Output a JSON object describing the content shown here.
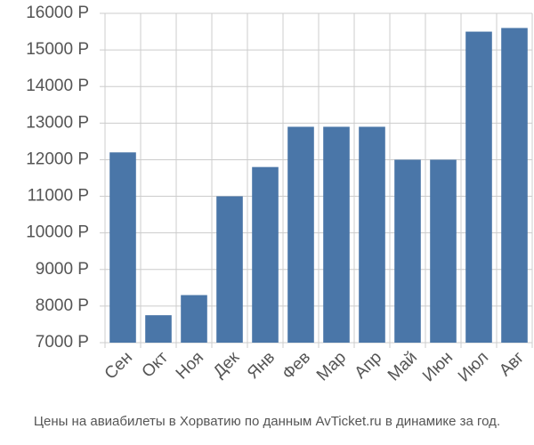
{
  "chart_data": {
    "type": "bar",
    "categories": [
      "Сен",
      "Окт",
      "Ноя",
      "Дек",
      "Янв",
      "Фев",
      "Мар",
      "Апр",
      "Май",
      "Июн",
      "Июл",
      "Авг"
    ],
    "values": [
      12200,
      7750,
      8300,
      11000,
      11800,
      12900,
      12900,
      12900,
      12000,
      12000,
      15500,
      15600
    ],
    "color": "#4a76a8",
    "ylim": [
      7000,
      16000
    ],
    "yticks": [
      {
        "value": 7000,
        "label": "7000 Р"
      },
      {
        "value": 8000,
        "label": "8000 Р"
      },
      {
        "value": 9000,
        "label": "9000 Р"
      },
      {
        "value": 10000,
        "label": "10000 Р"
      },
      {
        "value": 11000,
        "label": "11000 Р"
      },
      {
        "value": 12000,
        "label": "12000 Р"
      },
      {
        "value": 13000,
        "label": "13000 Р"
      },
      {
        "value": 14000,
        "label": "14000 Р"
      },
      {
        "value": 15000,
        "label": "15000 Р"
      },
      {
        "value": 16000,
        "label": "16000 Р"
      }
    ],
    "grid": true,
    "caption": "Цены на авиабилеты в Хорватию по данным AvTicket.ru в динамике за год."
  }
}
